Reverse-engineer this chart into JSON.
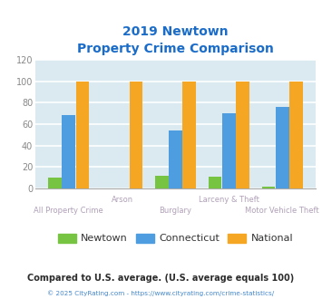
{
  "title_line1": "2019 Newtown",
  "title_line2": "Property Crime Comparison",
  "categories": [
    "All Property Crime",
    "Arson",
    "Burglary",
    "Larceny & Theft",
    "Motor Vehicle Theft"
  ],
  "newtown": [
    10,
    0,
    12,
    11,
    2
  ],
  "connecticut": [
    68,
    0,
    54,
    70,
    76
  ],
  "national": [
    100,
    100,
    100,
    100,
    100
  ],
  "bar_colors": {
    "newtown": "#76c442",
    "connecticut": "#4d9de0",
    "national": "#f5a623"
  },
  "ylim": [
    0,
    120
  ],
  "yticks": [
    0,
    20,
    40,
    60,
    80,
    100,
    120
  ],
  "xlabel_color": "#b0a0b8",
  "title_color": "#1a6cc8",
  "bg_color": "#daeaf0",
  "grid_color": "#ffffff",
  "legend_labels": [
    "Newtown",
    "Connecticut",
    "National"
  ],
  "footer_text": "Compared to U.S. average. (U.S. average equals 100)",
  "footer2_text": "© 2025 CityRating.com - https://www.cityrating.com/crime-statistics/",
  "footer_color": "#2c2c2c",
  "footer2_color": "#4488cc"
}
